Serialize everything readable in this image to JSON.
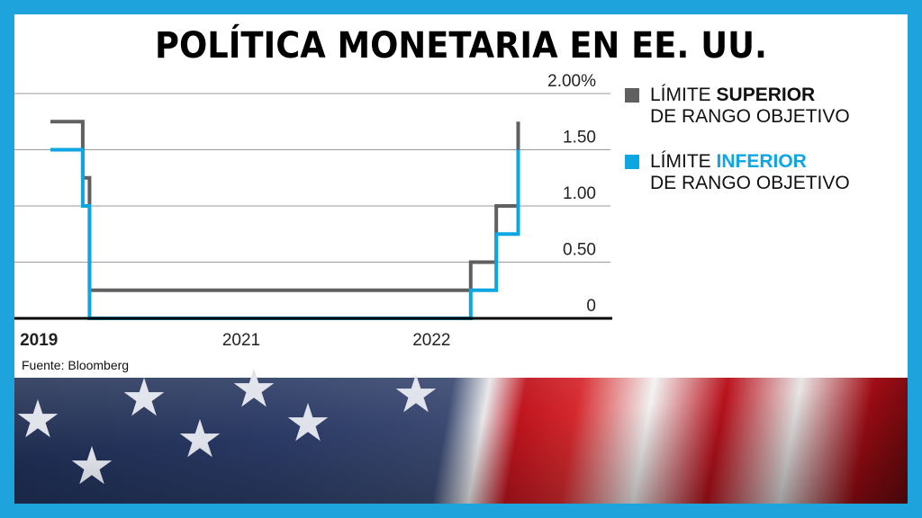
{
  "title": "POLÍTICA MONETARIA EN EE. UU.",
  "source": "Fuente: Bloomberg",
  "legend": [
    {
      "prefix": "LÍMITE ",
      "emph": "SUPERIOR",
      "line2": "DE RANGO OBJETIVO",
      "color": "#606060"
    },
    {
      "prefix": "LÍMITE ",
      "emph": "INFERIOR",
      "line2": "DE RANGO OBJETIVO",
      "color": "#0ea5e3"
    }
  ],
  "chart_data": {
    "type": "line",
    "step": true,
    "title": "POLÍTICA MONETARIA EN EE. UU.",
    "ylim": [
      0,
      2.0
    ],
    "y_ticks": [
      "0",
      "0.50",
      "1.00",
      "1.50",
      "2.00%"
    ],
    "y_tick_values": [
      0,
      0.5,
      1.0,
      1.5,
      2.0
    ],
    "x_ticks": [
      "2019",
      "2021",
      "2022"
    ],
    "x_tick_dates": [
      "2019-12-10",
      "2021-01-01",
      "2022-01-01"
    ],
    "xlim": [
      "2020-01-01",
      "2022-12-10"
    ],
    "grid": true,
    "legend_position": "right",
    "series": [
      {
        "name": "LÍMITE SUPERIOR DE RANGO OBJETIVO",
        "color": "#606060",
        "points": [
          [
            "2020-01-01",
            1.75
          ],
          [
            "2020-03-03",
            1.25
          ],
          [
            "2020-03-16",
            0.25
          ],
          [
            "2022-03-17",
            0.5
          ],
          [
            "2022-05-05",
            1.0
          ],
          [
            "2022-06-16",
            1.75
          ]
        ]
      },
      {
        "name": "LÍMITE INFERIOR DE RANGO OBJETIVO",
        "color": "#0ea5e3",
        "points": [
          [
            "2020-01-01",
            1.5
          ],
          [
            "2020-03-03",
            1.0
          ],
          [
            "2020-03-16",
            0.0
          ],
          [
            "2022-03-17",
            0.25
          ],
          [
            "2022-05-05",
            0.75
          ],
          [
            "2022-06-16",
            1.5
          ]
        ]
      }
    ]
  }
}
